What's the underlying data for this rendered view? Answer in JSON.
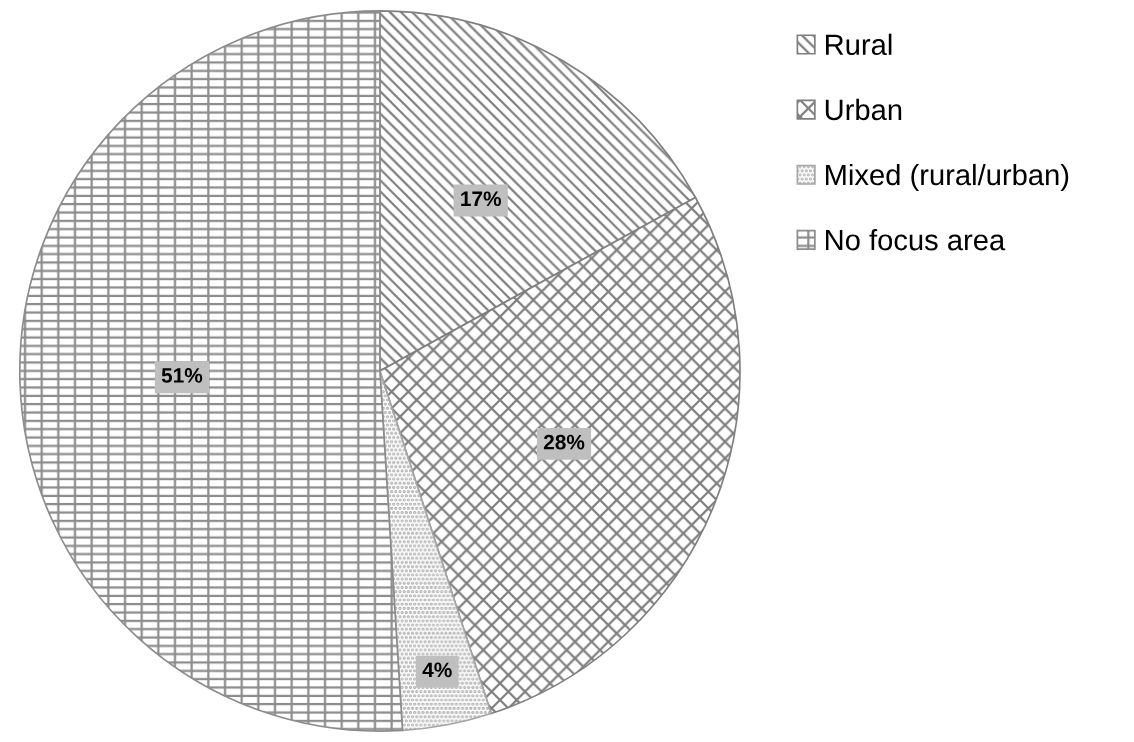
{
  "chart_data": {
    "type": "pie",
    "categories": [
      "Rural",
      "Urban",
      "Mixed (rural/urban)",
      "No focus area"
    ],
    "values": [
      17,
      28,
      4,
      51
    ],
    "value_labels": [
      "17%",
      "28%",
      "4%",
      "51%"
    ],
    "colors": [
      "#7f7f7f",
      "#7f7f7f",
      "#a6a6a6",
      "#8c8c8c"
    ],
    "legend": "top right"
  }
}
